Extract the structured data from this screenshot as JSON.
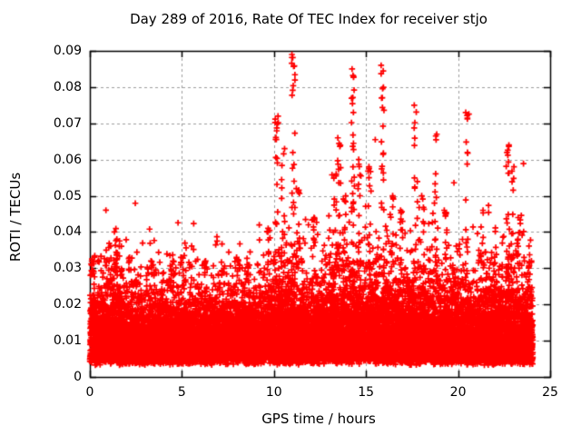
{
  "chart_data": {
    "type": "scatter",
    "title": "Day 289 of 2016, Rate Of TEC Index for receiver stjo",
    "xlabel": "GPS time / hours",
    "ylabel": "ROTI / TECUs",
    "xlim": [
      0,
      25
    ],
    "ylim": [
      0,
      0.09
    ],
    "xtick_values": [
      0,
      5,
      10,
      15,
      20,
      25
    ],
    "xtick_labels": [
      "0",
      "5",
      "10",
      "15",
      "20",
      "25"
    ],
    "ytick_values": [
      0,
      0.01,
      0.02,
      0.03,
      0.04,
      0.05,
      0.06,
      0.07,
      0.08,
      0.09
    ],
    "ytick_labels": [
      "0",
      "0.01",
      "0.02",
      "0.03",
      "0.04",
      "0.05",
      "0.06",
      "0.07",
      "0.08",
      "0.09"
    ],
    "grid": true,
    "legend": "none",
    "marker": "plus",
    "marker_color": "#ff0000",
    "grid_color": "#9e9e9e",
    "frame_color": "#000000",
    "background": "#ffffff",
    "seed": 1289,
    "x_data_range": [
      0,
      24.06
    ],
    "baseline": {
      "n_points": 15000,
      "y_min": 0.003,
      "y_base": 0.0032,
      "y_scale": 0.0042,
      "description": "dense band of ROTI values; most samples lie between 0.005 and 0.025 TECU with a spiky upper fringe reaching ~0.03-0.04",
      "activity_by_hour": [
        1.0,
        1.15,
        1.0,
        0.95,
        1.0,
        1.0,
        0.95,
        0.95,
        1.0,
        0.98,
        1.2,
        1.22,
        1.05,
        1.22,
        1.32,
        1.28,
        1.15,
        1.22,
        1.18,
        1.0,
        1.1,
        1.02,
        1.18,
        1.1,
        1.1
      ]
    },
    "spike_base": 0.028,
    "spikes": [
      {
        "x": 0.15,
        "ymax": 0.032,
        "n": 10
      },
      {
        "x": 1.4,
        "ymax": 0.038,
        "n": 14
      },
      {
        "x": 2.2,
        "ymax": 0.033,
        "n": 8
      },
      {
        "x": 3.4,
        "ymax": 0.032,
        "n": 8
      },
      {
        "x": 4.5,
        "ymax": 0.032,
        "n": 8
      },
      {
        "x": 5.0,
        "ymax": 0.033,
        "n": 8
      },
      {
        "x": 6.3,
        "ymax": 0.032,
        "n": 8
      },
      {
        "x": 7.2,
        "ymax": 0.03,
        "n": 6
      },
      {
        "x": 8.0,
        "ymax": 0.033,
        "n": 8
      },
      {
        "x": 8.6,
        "ymax": 0.031,
        "n": 6
      },
      {
        "x": 9.7,
        "ymax": 0.041,
        "n": 10
      },
      {
        "x": 10.15,
        "ymax": 0.072,
        "n": 22
      },
      {
        "x": 10.5,
        "ymax": 0.063,
        "n": 12
      },
      {
        "x": 11.05,
        "ymax": 0.089,
        "n": 26
      },
      {
        "x": 11.3,
        "ymax": 0.052,
        "n": 12
      },
      {
        "x": 12.15,
        "ymax": 0.044,
        "n": 12
      },
      {
        "x": 13.3,
        "ymax": 0.056,
        "n": 14
      },
      {
        "x": 13.55,
        "ymax": 0.066,
        "n": 16
      },
      {
        "x": 13.85,
        "ymax": 0.05,
        "n": 10
      },
      {
        "x": 14.3,
        "ymax": 0.085,
        "n": 30
      },
      {
        "x": 14.65,
        "ymax": 0.06,
        "n": 16
      },
      {
        "x": 15.2,
        "ymax": 0.058,
        "n": 18
      },
      {
        "x": 15.9,
        "ymax": 0.086,
        "n": 26
      },
      {
        "x": 16.4,
        "ymax": 0.05,
        "n": 12
      },
      {
        "x": 16.9,
        "ymax": 0.046,
        "n": 10
      },
      {
        "x": 17.7,
        "ymax": 0.075,
        "n": 16
      },
      {
        "x": 18.1,
        "ymax": 0.05,
        "n": 10
      },
      {
        "x": 18.8,
        "ymax": 0.067,
        "n": 14
      },
      {
        "x": 19.3,
        "ymax": 0.046,
        "n": 10
      },
      {
        "x": 20.5,
        "ymax": 0.073,
        "n": 16
      },
      {
        "x": 21.3,
        "ymax": 0.046,
        "n": 10
      },
      {
        "x": 22.7,
        "ymax": 0.064,
        "n": 20
      },
      {
        "x": 22.95,
        "ymax": 0.058,
        "n": 12
      },
      {
        "x": 23.3,
        "ymax": 0.044,
        "n": 10
      },
      {
        "x": 23.9,
        "ymax": 0.032,
        "n": 8
      }
    ]
  }
}
